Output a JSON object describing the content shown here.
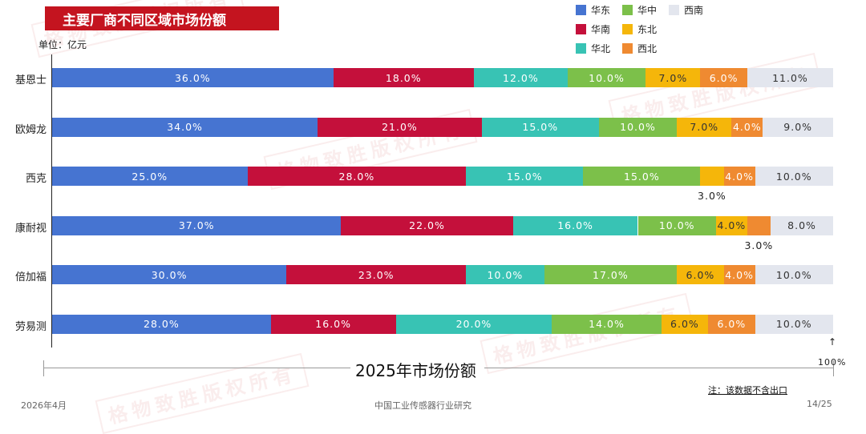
{
  "header": {
    "title": "主要厂商不同区域市场份额",
    "unit": "单位：亿元"
  },
  "colors": {
    "title_bg": "#c4141f",
    "华东": "#4674d1",
    "华南": "#c4103b",
    "华北": "#38c3b4",
    "华中": "#7cc04a",
    "东北": "#f5b60a",
    "西北": "#ef8a31",
    "西南": "#e3e6ee"
  },
  "legend": [
    {
      "name": "华东",
      "color": "#4674d1"
    },
    {
      "name": "华中",
      "color": "#7cc04a"
    },
    {
      "name": "西南",
      "color": "#e3e6ee"
    },
    {
      "name": "华南",
      "color": "#c4103b"
    },
    {
      "name": "东北",
      "color": "#f5b60a"
    },
    {
      "name": "华北",
      "color": "#38c3b4"
    },
    {
      "name": "西北",
      "color": "#ef8a31"
    }
  ],
  "chart_data": {
    "type": "bar",
    "orientation": "horizontal",
    "stacked": true,
    "xlabel": "2025年市场份额",
    "xlim": [
      0,
      100
    ],
    "x_end_label": "100%",
    "categories": [
      "基恩士",
      "欧姆龙",
      "西克",
      "康耐视",
      "倍加福",
      "劳易测"
    ],
    "series": [
      {
        "name": "华东",
        "values": [
          36.0,
          34.0,
          25.0,
          37.0,
          30.0,
          28.0
        ]
      },
      {
        "name": "华南",
        "values": [
          18.0,
          21.0,
          28.0,
          22.0,
          23.0,
          16.0
        ]
      },
      {
        "name": "华北",
        "values": [
          12.0,
          15.0,
          15.0,
          16.0,
          10.0,
          20.0
        ]
      },
      {
        "name": "华中",
        "values": [
          10.0,
          10.0,
          15.0,
          10.0,
          17.0,
          14.0
        ]
      },
      {
        "name": "东北",
        "values": [
          7.0,
          7.0,
          3.0,
          4.0,
          6.0,
          6.0
        ]
      },
      {
        "name": "西北",
        "values": [
          6.0,
          4.0,
          4.0,
          3.0,
          4.0,
          6.0
        ]
      },
      {
        "name": "西南",
        "values": [
          11.0,
          9.0,
          10.0,
          8.0,
          10.0,
          10.0
        ]
      }
    ],
    "data_labels": [
      [
        "36.0%",
        "18.0%",
        "12.0%",
        "10.0%",
        "7.0%",
        "6.0%",
        "11.0%"
      ],
      [
        "34.0%",
        "21.0%",
        "15.0%",
        "10.0%",
        "7.0%",
        "4.0%",
        "9.0%"
      ],
      [
        "25.0%",
        "28.0%",
        "15.0%",
        "15.0%",
        "3.0%",
        "4.0%",
        "10.0%"
      ],
      [
        "37.0%",
        "22.0%",
        "16.0%",
        "10.0%",
        "4.0%",
        "3.0%",
        "8.0%"
      ],
      [
        "30.0%",
        "23.0%",
        "10.0%",
        "17.0%",
        "6.0%",
        "4.0%",
        "10.0%"
      ],
      [
        "28.0%",
        "16.0%",
        "20.0%",
        "14.0%",
        "6.0%",
        "6.0%",
        "10.0%"
      ]
    ]
  },
  "note": "注：该数据不含出口",
  "footer": {
    "date": "2026年4月",
    "source": "中国工业传感器行业研究",
    "page": "14/25"
  },
  "watermark_text": "格物致胜版权所有"
}
